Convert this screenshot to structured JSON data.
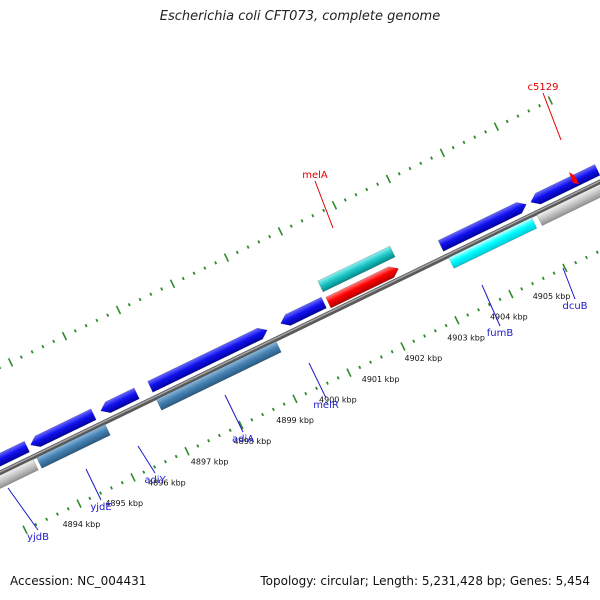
{
  "title": "Escherichia coli CFT073, complete genome",
  "footer": {
    "accession": "Accession: NC_004431",
    "summary": "Topology: circular; Length: 5,231,428 bp; Genes: 5,454"
  },
  "colors": {
    "backbone": "#808080",
    "tick": "#2e8b2e",
    "label_blue": "#1a1acd",
    "label_red": "#e00000",
    "gene_blue": "#1111ee",
    "gene_steel": "#4682b4",
    "gene_cyan": "#00cfcf",
    "gene_bright_cyan": "#00ffff",
    "gene_red": "#ff0000",
    "gene_gray": "#c0c0c0"
  },
  "scale_labels": [
    "4894 kbp",
    "4895 kbp",
    "4896 kbp",
    "4897 kbp",
    "4898 kbp",
    "4899 kbp",
    "4900 kbp",
    "4901 kbp",
    "4902 kbp",
    "4903 kbp",
    "4904 kbp",
    "4905 kbp"
  ],
  "gene_labels": [
    {
      "text": "yjdB",
      "color": "blue"
    },
    {
      "text": "yjdE",
      "color": "blue"
    },
    {
      "text": "adiY",
      "color": "blue"
    },
    {
      "text": "adiA",
      "color": "blue"
    },
    {
      "text": "melR",
      "color": "blue"
    },
    {
      "text": "melA",
      "color": "red"
    },
    {
      "text": "fumB",
      "color": "blue"
    },
    {
      "text": "dcuB",
      "color": "blue"
    },
    {
      "text": "c5129",
      "color": "red"
    }
  ]
}
